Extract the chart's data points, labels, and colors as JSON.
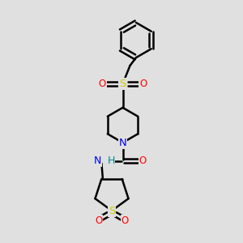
{
  "bg_color": "#e0e0e0",
  "bond_color": "#000000",
  "bond_width": 1.8,
  "atom_colors": {
    "S": "#cccc00",
    "O": "#ff0000",
    "N": "#0000ee",
    "NH": "#008888",
    "C": "#000000"
  },
  "font_size": 8.5,
  "fig_size": [
    3.0,
    3.0
  ],
  "dpi": 100
}
